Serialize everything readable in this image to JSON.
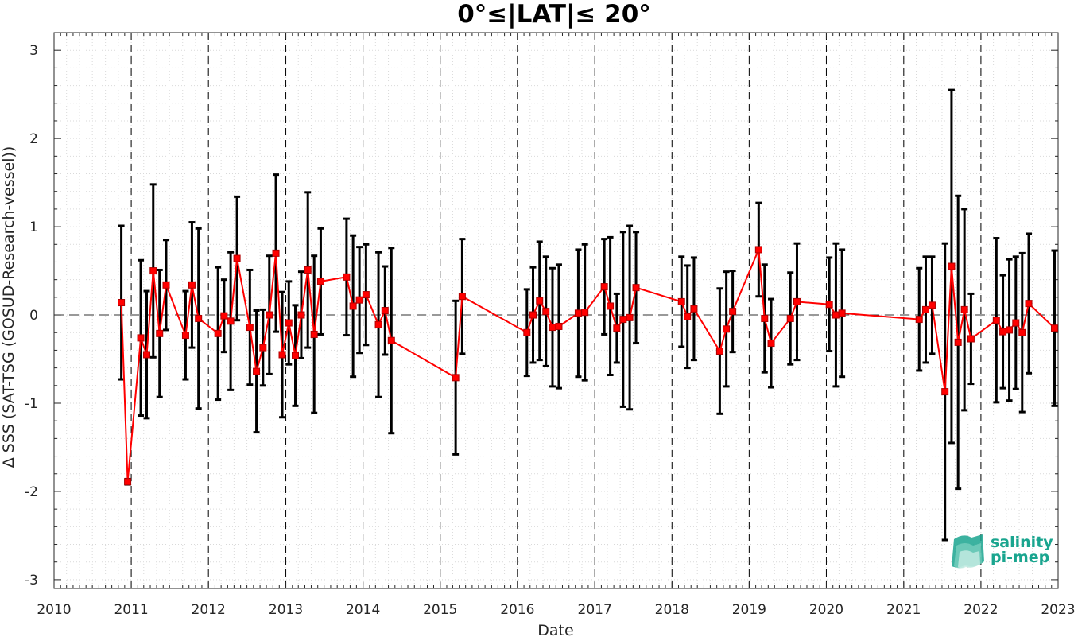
{
  "chart_data": {
    "type": "line",
    "title": "0°≤|LAT|≤ 20°",
    "xlabel": "Date",
    "ylabel": "Δ SSS (SAT-TSG (GOSUD-Research-vessel))",
    "xlim": [
      "2010",
      "2023"
    ],
    "ylim": [
      -3.1,
      3.2
    ],
    "x_tick_labels": [
      "2010",
      "2011",
      "2012",
      "2013",
      "2014",
      "2015",
      "2016",
      "2017",
      "2018",
      "2019",
      "2020",
      "2021",
      "2022",
      "2023"
    ],
    "y_tick_labels": [
      "-3",
      "-2",
      "-1",
      "0",
      "1",
      "2",
      "3"
    ],
    "y_ticks": [
      -3,
      -2,
      -1,
      0,
      1,
      2,
      3
    ],
    "grid": "minor dotted",
    "year_boundaries": "dashed vertical lines",
    "zero_line": "dashed horizontal at 0",
    "series": [
      {
        "style": "red line with square markers and black error bars (±std)",
        "color": "#ff0000",
        "errorbar_color": "#000000",
        "x": [
          "2010-11-15",
          "2010-12-15",
          "2011-02-15",
          "2011-03-15",
          "2011-04-15",
          "2011-05-15",
          "2011-06-15",
          "2011-09-15",
          "2011-10-15",
          "2011-11-15",
          "2012-02-15",
          "2012-03-15",
          "2012-04-15",
          "2012-05-15",
          "2012-07-15",
          "2012-08-15",
          "2012-09-15",
          "2012-10-15",
          "2012-11-15",
          "2012-12-15",
          "2013-01-15",
          "2013-02-15",
          "2013-03-15",
          "2013-04-15",
          "2013-05-15",
          "2013-06-15",
          "2013-10-15",
          "2013-11-15",
          "2013-12-15",
          "2014-01-15",
          "2014-03-15",
          "2014-04-15",
          "2014-05-15",
          "2015-03-15",
          "2015-04-15",
          "2016-02-15",
          "2016-03-15",
          "2016-04-15",
          "2016-05-15",
          "2016-06-15",
          "2016-07-15",
          "2016-10-15",
          "2016-11-15",
          "2017-02-15",
          "2017-03-15",
          "2017-04-15",
          "2017-05-15",
          "2017-06-15",
          "2017-07-15",
          "2018-02-15",
          "2018-03-15",
          "2018-04-15",
          "2018-08-15",
          "2018-09-15",
          "2018-10-15",
          "2019-02-15",
          "2019-03-15",
          "2019-04-15",
          "2019-07-15",
          "2019-08-15",
          "2020-01-15",
          "2020-02-15",
          "2020-03-15",
          "2021-03-15",
          "2021-04-15",
          "2021-05-15",
          "2021-07-15",
          "2021-08-15",
          "2021-09-15",
          "2021-10-15",
          "2021-11-15",
          "2022-03-15",
          "2022-04-15",
          "2022-05-15",
          "2022-06-15",
          "2022-07-15",
          "2022-08-15",
          "2022-12-15"
        ],
        "y": [
          0.14,
          -1.89,
          -0.26,
          -0.45,
          0.5,
          -0.21,
          0.34,
          -0.23,
          0.34,
          -0.04,
          -0.21,
          -0.01,
          -0.07,
          0.64,
          -0.14,
          -0.64,
          -0.37,
          0.0,
          0.7,
          -0.45,
          -0.09,
          -0.46,
          0.0,
          0.51,
          -0.22,
          0.38,
          0.43,
          0.1,
          0.17,
          0.23,
          -0.11,
          0.05,
          -0.29,
          -0.71,
          0.21,
          -0.2,
          0.0,
          0.16,
          0.04,
          -0.14,
          -0.13,
          0.02,
          0.03,
          0.32,
          0.1,
          -0.15,
          -0.05,
          -0.03,
          0.31,
          0.15,
          -0.02,
          0.07,
          -0.41,
          -0.16,
          0.04,
          0.74,
          -0.04,
          -0.32,
          -0.04,
          0.15,
          0.12,
          0.0,
          0.02,
          -0.05,
          0.06,
          0.11,
          -0.87,
          0.55,
          -0.31,
          0.06,
          -0.27,
          -0.06,
          -0.19,
          -0.17,
          -0.09,
          -0.2,
          0.13,
          -0.15
        ],
        "error": [
          0.87,
          0.03,
          0.88,
          0.72,
          0.98,
          0.72,
          0.51,
          0.5,
          0.71,
          1.02,
          0.75,
          0.41,
          0.78,
          0.7,
          0.65,
          0.69,
          0.43,
          0.67,
          0.89,
          0.71,
          0.47,
          0.57,
          0.49,
          0.88,
          0.89,
          0.6,
          0.66,
          0.8,
          0.6,
          0.57,
          0.82,
          0.5,
          1.05,
          0.87,
          0.65,
          0.49,
          0.54,
          0.67,
          0.62,
          0.67,
          0.7,
          0.72,
          0.77,
          0.54,
          0.78,
          0.39,
          0.99,
          1.04,
          0.63,
          0.51,
          0.58,
          0.58,
          0.71,
          0.65,
          0.46,
          0.53,
          0.61,
          0.5,
          0.52,
          0.66,
          0.53,
          0.81,
          0.72,
          0.58,
          0.6,
          0.55,
          1.68,
          2.0,
          1.66,
          1.14,
          0.51,
          0.93,
          0.64,
          0.8,
          0.75,
          0.9,
          0.79,
          0.88
        ]
      }
    ]
  },
  "logo": {
    "line1": "salinity",
    "line2": "pi-mep",
    "color": "#1aa58f"
  }
}
